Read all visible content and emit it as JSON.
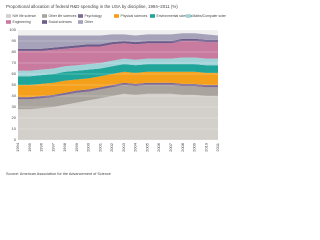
{
  "chart_data": {
    "type": "stacked_area",
    "title": "Proportional allocation of federal R&D spending in the USA by discipline, 1994–2011 (%)",
    "categories": [
      "1994",
      "1995",
      "1996",
      "1997",
      "1998",
      "1999",
      "2000",
      "2001",
      "2002",
      "2003",
      "2004",
      "2005",
      "2006",
      "2007",
      "2008",
      "2009",
      "2010",
      "2011"
    ],
    "series": [
      {
        "name": "NIH life science",
        "color": "#d3cfca",
        "values": [
          28,
          28,
          29,
          30,
          32,
          34,
          36,
          38,
          40,
          42,
          41,
          42,
          42,
          42,
          41,
          41,
          40,
          40
        ]
      },
      {
        "name": "Other life sciences",
        "color": "#a9a49d",
        "values": [
          9,
          9,
          9,
          9,
          9,
          9,
          8,
          8,
          8,
          8,
          8,
          8,
          8,
          8,
          8,
          8,
          8,
          8
        ]
      },
      {
        "name": "Psychology",
        "color": "#7f6a93",
        "values": [
          2,
          2,
          2,
          2,
          2,
          2,
          2,
          2,
          2,
          2,
          2,
          2,
          2,
          2,
          2,
          2,
          2,
          2
        ]
      },
      {
        "name": "Physical sciences",
        "color": "#f5a01a",
        "values": [
          11,
          11,
          11,
          11,
          11,
          10,
          10,
          10,
          10,
          10,
          10,
          10,
          10,
          10,
          11,
          11,
          11,
          11
        ]
      },
      {
        "name": "Environmental sciences",
        "color": "#1fa59a",
        "values": [
          8,
          8,
          8,
          8,
          8,
          8,
          8,
          7,
          7,
          7,
          7,
          7,
          7,
          7,
          7,
          7,
          7,
          7
        ]
      },
      {
        "name": "Maths/Computer science",
        "color": "#9fd3d8",
        "values": [
          5,
          5,
          5,
          5,
          5,
          5,
          5,
          5,
          5,
          5,
          5,
          5,
          5,
          5,
          6,
          6,
          6,
          6
        ]
      },
      {
        "name": "Engineering",
        "color": "#c97a9f",
        "values": [
          18,
          18,
          17,
          17,
          16,
          16,
          16,
          15,
          15,
          14,
          14,
          14,
          14,
          14,
          15,
          15,
          15,
          15
        ]
      },
      {
        "name": "Social sciences",
        "color": "#6d5b8a",
        "values": [
          2,
          2,
          2,
          2,
          2,
          2,
          2,
          2,
          2,
          2,
          2,
          2,
          2,
          2,
          2,
          2,
          2,
          2
        ]
      },
      {
        "name": "Other",
        "color": "#a6a2b9",
        "values": [
          12,
          12,
          12,
          11,
          10,
          9,
          8,
          8,
          7,
          6,
          6,
          6,
          6,
          6,
          5,
          5,
          5,
          4
        ]
      }
    ],
    "ylim": [
      0,
      100
    ],
    "yticks": [
      0,
      10,
      20,
      30,
      40,
      50,
      60,
      70,
      80,
      90,
      100
    ],
    "grid": true,
    "source": "Source: American Association for the Advancement of Science"
  }
}
